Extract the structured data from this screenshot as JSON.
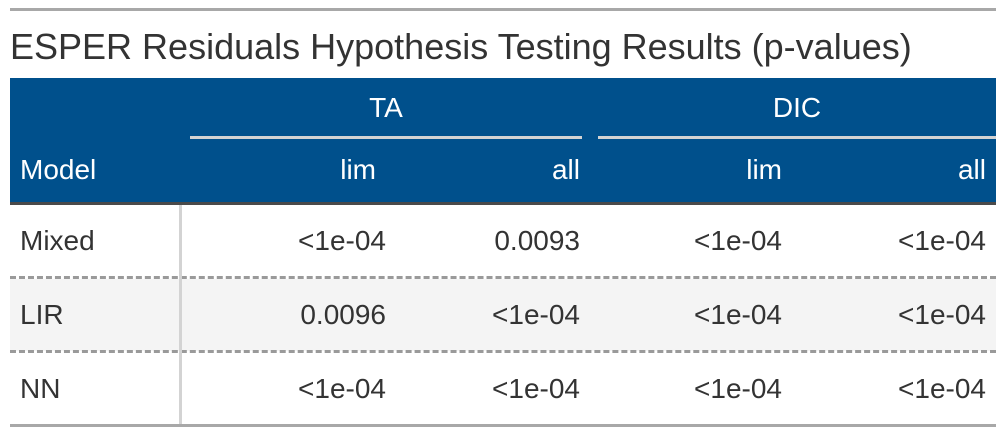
{
  "table": {
    "title": "ESPER Residuals Hypothesis Testing Results (p-values)",
    "spanners": [
      {
        "label": "TA"
      },
      {
        "label": "DIC"
      }
    ],
    "columns": {
      "stub": "Model",
      "ta_lim": "lim",
      "ta_all": "all",
      "dic_lim": "lim",
      "dic_all": "all"
    },
    "rows": [
      {
        "model": "Mixed",
        "ta_lim": "<1e-04",
        "ta_all": "0.0093",
        "dic_lim": "<1e-04",
        "dic_all": "<1e-04"
      },
      {
        "model": "LIR",
        "ta_lim": "0.0096",
        "ta_all": "<1e-04",
        "dic_lim": "<1e-04",
        "dic_all": "<1e-04"
      },
      {
        "model": "NN",
        "ta_lim": "<1e-04",
        "ta_all": "<1e-04",
        "dic_lim": "<1e-04",
        "dic_all": "<1e-04"
      }
    ],
    "colors": {
      "header_bg": "#00508c",
      "header_text": "#ffffff",
      "stripe": "#f4f4f4",
      "text": "#333333"
    }
  }
}
